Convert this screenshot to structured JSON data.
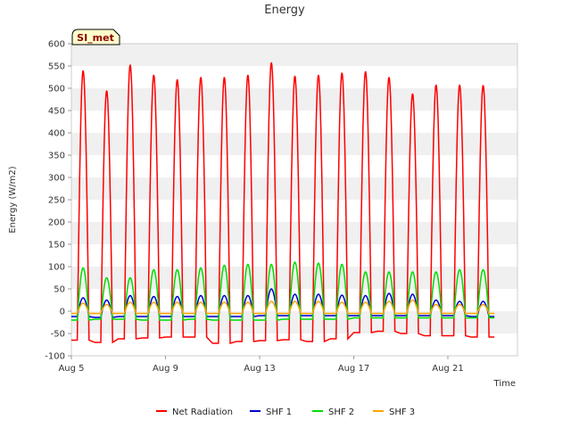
{
  "chart_data": {
    "type": "line",
    "title": "Energy",
    "xlabel": "Time",
    "ylabel": "Energy (W/m2)",
    "site_tag": "SI_met",
    "ylim": [
      -100,
      600
    ],
    "yticks": [
      -100,
      -50,
      0,
      50,
      100,
      150,
      200,
      250,
      300,
      350,
      400,
      450,
      500,
      550,
      600
    ],
    "xlim": [
      "2023-08-05",
      "2023-08-23"
    ],
    "xticks": [
      "Aug 5",
      "Aug 9",
      "Aug 13",
      "Aug 17",
      "Aug 21"
    ],
    "xtick_dates": [
      "2023-08-05",
      "2023-08-09",
      "2023-08-13",
      "2023-08-17",
      "2023-08-21"
    ],
    "grid": "horizontal alternating bands",
    "legend_position": "bottom",
    "daily_peak_dates": [
      "2023-08-05",
      "2023-08-06",
      "2023-08-07",
      "2023-08-08",
      "2023-08-09",
      "2023-08-10",
      "2023-08-11",
      "2023-08-12",
      "2023-08-13",
      "2023-08-14",
      "2023-08-15",
      "2023-08-16",
      "2023-08-17",
      "2023-08-18",
      "2023-08-19",
      "2023-08-20",
      "2023-08-21",
      "2023-08-22"
    ],
    "series": [
      {
        "name": "Net Radiation",
        "color": "#ff0000",
        "daily_peak": [
          540,
          495,
          553,
          530,
          520,
          525,
          525,
          530,
          558,
          528,
          530,
          535,
          538,
          525,
          488,
          508,
          508,
          507
        ],
        "night_low": [
          -65,
          -70,
          -62,
          -60,
          -58,
          -58,
          -72,
          -68,
          -66,
          -64,
          -68,
          -62,
          -48,
          -45,
          -50,
          -55,
          -55,
          -58
        ]
      },
      {
        "name": "SHF 1",
        "color": "#0000cc",
        "daily_peak": [
          30,
          25,
          35,
          33,
          33,
          35,
          35,
          35,
          50,
          38,
          38,
          36,
          35,
          40,
          38,
          25,
          22,
          22
        ],
        "night_low": [
          -12,
          -14,
          -12,
          -12,
          -12,
          -12,
          -12,
          -12,
          -10,
          -10,
          -10,
          -10,
          -10,
          -10,
          -10,
          -10,
          -10,
          -12
        ]
      },
      {
        "name": "SHF 2",
        "color": "#00dd00",
        "daily_peak": [
          97,
          75,
          75,
          93,
          93,
          97,
          103,
          105,
          105,
          110,
          108,
          105,
          88,
          88,
          88,
          88,
          93,
          93
        ],
        "night_low": [
          -20,
          -18,
          -18,
          -20,
          -20,
          -18,
          -20,
          -20,
          -20,
          -18,
          -18,
          -18,
          -15,
          -15,
          -15,
          -15,
          -15,
          -15
        ]
      },
      {
        "name": "SHF 3",
        "color": "#ffa500",
        "daily_peak": [
          18,
          15,
          20,
          20,
          20,
          20,
          20,
          20,
          22,
          22,
          22,
          20,
          20,
          22,
          25,
          15,
          15,
          15
        ],
        "night_low": [
          -5,
          -5,
          -5,
          -5,
          -5,
          -5,
          -5,
          -5,
          -5,
          -5,
          -5,
          -5,
          -5,
          -5,
          -5,
          -5,
          -5,
          -5
        ]
      }
    ]
  }
}
